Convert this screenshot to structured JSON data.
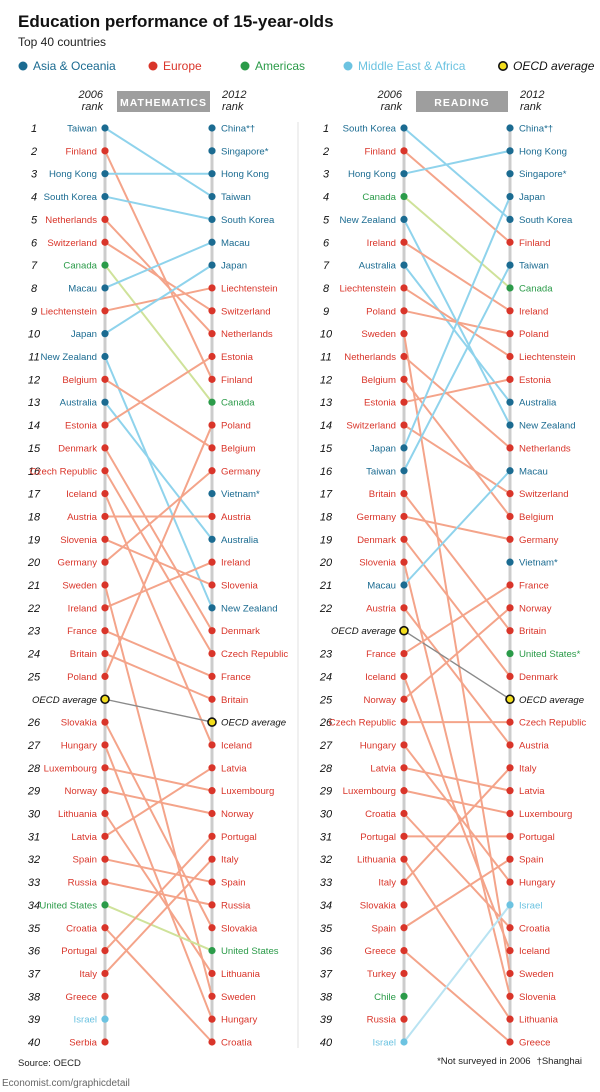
{
  "header": {
    "title": "Education performance of 15-year-olds",
    "subtitle": "Top 40 countries"
  },
  "legend": [
    {
      "key": "asia",
      "label": "Asia & Oceania",
      "color": "#1b6b91"
    },
    {
      "key": "europe",
      "label": "Europe",
      "color": "#d9352a"
    },
    {
      "key": "americas",
      "label": "Americas",
      "color": "#2b9b49"
    },
    {
      "key": "mea",
      "label": "Middle East & Africa",
      "color": "#6cc3e1"
    },
    {
      "key": "oecd",
      "label": "OECD average",
      "color": "#f2dd1d"
    }
  ],
  "line_colors": {
    "asia": "#8fd3ec",
    "europe": "#f4a48a",
    "americas": "#cfe29a",
    "mea": "#b9e3f2",
    "oecd": "#8a8a8a"
  },
  "axis_color": "#cccccc",
  "panel_header_color": "#9e9e9e",
  "chart_data": [
    {
      "type": "slope",
      "title": "MATHEMATICS",
      "left_header": [
        "2006",
        "rank"
      ],
      "right_header": [
        "2012",
        "rank"
      ],
      "y_label": "rank",
      "ranks": [
        1,
        2,
        3,
        4,
        5,
        6,
        7,
        8,
        9,
        10,
        11,
        12,
        13,
        14,
        15,
        16,
        17,
        18,
        19,
        20,
        21,
        22,
        23,
        24,
        25,
        26,
        27,
        28,
        29,
        30,
        31,
        32,
        33,
        34,
        35,
        36,
        37,
        38,
        39,
        40
      ],
      "left": [
        {
          "name": "Taiwan",
          "region": "asia"
        },
        {
          "name": "Finland",
          "region": "europe"
        },
        {
          "name": "Hong Kong",
          "region": "asia"
        },
        {
          "name": "South Korea",
          "region": "asia"
        },
        {
          "name": "Netherlands",
          "region": "europe"
        },
        {
          "name": "Switzerland",
          "region": "europe"
        },
        {
          "name": "Canada",
          "region": "americas"
        },
        {
          "name": "Macau",
          "region": "asia"
        },
        {
          "name": "Liechtenstein",
          "region": "europe"
        },
        {
          "name": "Japan",
          "region": "asia"
        },
        {
          "name": "New Zealand",
          "region": "asia"
        },
        {
          "name": "Belgium",
          "region": "europe"
        },
        {
          "name": "Australia",
          "region": "asia"
        },
        {
          "name": "Estonia",
          "region": "europe"
        },
        {
          "name": "Denmark",
          "region": "europe"
        },
        {
          "name": "Czech Republic",
          "region": "europe"
        },
        {
          "name": "Iceland",
          "region": "europe"
        },
        {
          "name": "Austria",
          "region": "europe"
        },
        {
          "name": "Slovenia",
          "region": "europe"
        },
        {
          "name": "Germany",
          "region": "europe"
        },
        {
          "name": "Sweden",
          "region": "europe"
        },
        {
          "name": "Ireland",
          "region": "europe"
        },
        {
          "name": "France",
          "region": "europe"
        },
        {
          "name": "Britain",
          "region": "europe"
        },
        {
          "name": "Poland",
          "region": "europe"
        },
        {
          "name": "OECD average",
          "region": "oecd"
        },
        {
          "name": "Slovakia",
          "region": "europe"
        },
        {
          "name": "Hungary",
          "region": "europe"
        },
        {
          "name": "Luxembourg",
          "region": "europe"
        },
        {
          "name": "Norway",
          "region": "europe"
        },
        {
          "name": "Lithuania",
          "region": "europe"
        },
        {
          "name": "Latvia",
          "region": "europe"
        },
        {
          "name": "Spain",
          "region": "europe"
        },
        {
          "name": "Russia",
          "region": "europe"
        },
        {
          "name": "United States",
          "region": "americas"
        },
        {
          "name": "Croatia",
          "region": "europe"
        },
        {
          "name": "Portugal",
          "region": "europe"
        },
        {
          "name": "Italy",
          "region": "europe"
        },
        {
          "name": "Greece",
          "region": "europe"
        },
        {
          "name": "Israel",
          "region": "mea"
        },
        {
          "name": "Serbia",
          "region": "europe"
        }
      ],
      "right": [
        {
          "name": "China*†",
          "region": "asia"
        },
        {
          "name": "Singapore*",
          "region": "asia"
        },
        {
          "name": "Hong Kong",
          "region": "asia"
        },
        {
          "name": "Taiwan",
          "region": "asia"
        },
        {
          "name": "South Korea",
          "region": "asia"
        },
        {
          "name": "Macau",
          "region": "asia"
        },
        {
          "name": "Japan",
          "region": "asia"
        },
        {
          "name": "Liechtenstein",
          "region": "europe"
        },
        {
          "name": "Switzerland",
          "region": "europe"
        },
        {
          "name": "Netherlands",
          "region": "europe"
        },
        {
          "name": "Estonia",
          "region": "europe"
        },
        {
          "name": "Finland",
          "region": "europe"
        },
        {
          "name": "Canada",
          "region": "americas"
        },
        {
          "name": "Poland",
          "region": "europe"
        },
        {
          "name": "Belgium",
          "region": "europe"
        },
        {
          "name": "Germany",
          "region": "europe"
        },
        {
          "name": "Vietnam*",
          "region": "asia"
        },
        {
          "name": "Austria",
          "region": "europe"
        },
        {
          "name": "Australia",
          "region": "asia"
        },
        {
          "name": "Ireland",
          "region": "europe"
        },
        {
          "name": "Slovenia",
          "region": "europe"
        },
        {
          "name": "New Zealand",
          "region": "asia"
        },
        {
          "name": "Denmark",
          "region": "europe"
        },
        {
          "name": "Czech Republic",
          "region": "europe"
        },
        {
          "name": "France",
          "region": "europe"
        },
        {
          "name": "Britain",
          "region": "europe"
        },
        {
          "name": "OECD average",
          "region": "oecd"
        },
        {
          "name": "Iceland",
          "region": "europe"
        },
        {
          "name": "Latvia",
          "region": "europe"
        },
        {
          "name": "Luxembourg",
          "region": "europe"
        },
        {
          "name": "Norway",
          "region": "europe"
        },
        {
          "name": "Portugal",
          "region": "europe"
        },
        {
          "name": "Italy",
          "region": "europe"
        },
        {
          "name": "Spain",
          "region": "europe"
        },
        {
          "name": "Russia",
          "region": "europe"
        },
        {
          "name": "Slovakia",
          "region": "europe"
        },
        {
          "name": "United States",
          "region": "americas"
        },
        {
          "name": "Lithuania",
          "region": "europe"
        },
        {
          "name": "Sweden",
          "region": "europe"
        },
        {
          "name": "Hungary",
          "region": "europe"
        },
        {
          "name": "Croatia",
          "region": "europe"
        }
      ]
    },
    {
      "type": "slope",
      "title": "READING",
      "left_header": [
        "2006",
        "rank"
      ],
      "right_header": [
        "2012",
        "rank"
      ],
      "y_label": "rank",
      "ranks": [
        1,
        2,
        3,
        4,
        5,
        6,
        7,
        8,
        9,
        10,
        11,
        12,
        13,
        14,
        15,
        16,
        17,
        18,
        19,
        20,
        21,
        22,
        23,
        24,
        25,
        26,
        27,
        28,
        29,
        30,
        31,
        32,
        33,
        34,
        35,
        36,
        37,
        38,
        39,
        40
      ],
      "left": [
        {
          "name": "South Korea",
          "region": "asia"
        },
        {
          "name": "Finland",
          "region": "europe"
        },
        {
          "name": "Hong Kong",
          "region": "asia"
        },
        {
          "name": "Canada",
          "region": "americas"
        },
        {
          "name": "New Zealand",
          "region": "asia"
        },
        {
          "name": "Ireland",
          "region": "europe"
        },
        {
          "name": "Australia",
          "region": "asia"
        },
        {
          "name": "Liechtenstein",
          "region": "europe"
        },
        {
          "name": "Poland",
          "region": "europe"
        },
        {
          "name": "Sweden",
          "region": "europe"
        },
        {
          "name": "Netherlands",
          "region": "europe"
        },
        {
          "name": "Belgium",
          "region": "europe"
        },
        {
          "name": "Estonia",
          "region": "europe"
        },
        {
          "name": "Switzerland",
          "region": "europe"
        },
        {
          "name": "Japan",
          "region": "asia"
        },
        {
          "name": "Taiwan",
          "region": "asia"
        },
        {
          "name": "Britain",
          "region": "europe"
        },
        {
          "name": "Germany",
          "region": "europe"
        },
        {
          "name": "Denmark",
          "region": "europe"
        },
        {
          "name": "Slovenia",
          "region": "europe"
        },
        {
          "name": "Macau",
          "region": "asia"
        },
        {
          "name": "Austria",
          "region": "europe"
        },
        {
          "name": "OECD average",
          "region": "oecd"
        },
        {
          "name": "France",
          "region": "europe"
        },
        {
          "name": "Iceland",
          "region": "europe"
        },
        {
          "name": "Norway",
          "region": "europe"
        },
        {
          "name": "Czech Republic",
          "region": "europe"
        },
        {
          "name": "Hungary",
          "region": "europe"
        },
        {
          "name": "Latvia",
          "region": "europe"
        },
        {
          "name": "Luxembourg",
          "region": "europe"
        },
        {
          "name": "Croatia",
          "region": "europe"
        },
        {
          "name": "Portugal",
          "region": "europe"
        },
        {
          "name": "Lithuania",
          "region": "europe"
        },
        {
          "name": "Italy",
          "region": "europe"
        },
        {
          "name": "Slovakia",
          "region": "europe"
        },
        {
          "name": "Spain",
          "region": "europe"
        },
        {
          "name": "Greece",
          "region": "europe"
        },
        {
          "name": "Turkey",
          "region": "europe"
        },
        {
          "name": "Chile",
          "region": "americas"
        },
        {
          "name": "Russia",
          "region": "europe"
        },
        {
          "name": "Israel",
          "region": "mea"
        }
      ],
      "right": [
        {
          "name": "China*†",
          "region": "asia"
        },
        {
          "name": "Hong Kong",
          "region": "asia"
        },
        {
          "name": "Singapore*",
          "region": "asia"
        },
        {
          "name": "Japan",
          "region": "asia"
        },
        {
          "name": "South Korea",
          "region": "asia"
        },
        {
          "name": "Finland",
          "region": "europe"
        },
        {
          "name": "Taiwan",
          "region": "asia"
        },
        {
          "name": "Canada",
          "region": "americas"
        },
        {
          "name": "Ireland",
          "region": "europe"
        },
        {
          "name": "Poland",
          "region": "europe"
        },
        {
          "name": "Liechtenstein",
          "region": "europe"
        },
        {
          "name": "Estonia",
          "region": "europe"
        },
        {
          "name": "Australia",
          "region": "asia"
        },
        {
          "name": "New Zealand",
          "region": "asia"
        },
        {
          "name": "Netherlands",
          "region": "europe"
        },
        {
          "name": "Macau",
          "region": "asia"
        },
        {
          "name": "Switzerland",
          "region": "europe"
        },
        {
          "name": "Belgium",
          "region": "europe"
        },
        {
          "name": "Germany",
          "region": "europe"
        },
        {
          "name": "Vietnam*",
          "region": "asia"
        },
        {
          "name": "France",
          "region": "europe"
        },
        {
          "name": "Norway",
          "region": "europe"
        },
        {
          "name": "Britain",
          "region": "europe"
        },
        {
          "name": "United States*",
          "region": "americas"
        },
        {
          "name": "Denmark",
          "region": "europe"
        },
        {
          "name": "OECD average",
          "region": "oecd"
        },
        {
          "name": "Czech Republic",
          "region": "europe"
        },
        {
          "name": "Austria",
          "region": "europe"
        },
        {
          "name": "Italy",
          "region": "europe"
        },
        {
          "name": "Latvia",
          "region": "europe"
        },
        {
          "name": "Luxembourg",
          "region": "europe"
        },
        {
          "name": "Portugal",
          "region": "europe"
        },
        {
          "name": "Spain",
          "region": "europe"
        },
        {
          "name": "Hungary",
          "region": "europe"
        },
        {
          "name": "Israel",
          "region": "mea"
        },
        {
          "name": "Croatia",
          "region": "europe"
        },
        {
          "name": "Iceland",
          "region": "europe"
        },
        {
          "name": "Sweden",
          "region": "europe"
        },
        {
          "name": "Slovenia",
          "region": "europe"
        },
        {
          "name": "Lithuania",
          "region": "europe"
        },
        {
          "name": "Greece",
          "region": "europe"
        }
      ]
    }
  ],
  "footer": {
    "source": "Source: OECD",
    "note1": "*Not surveyed in 2006",
    "note2": "†Shanghai",
    "brand": "Economist.com/graphicdetail"
  }
}
